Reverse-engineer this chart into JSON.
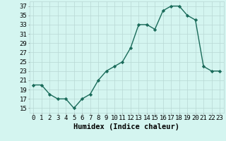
{
  "x": [
    0,
    1,
    2,
    3,
    4,
    5,
    6,
    7,
    8,
    9,
    10,
    11,
    12,
    13,
    14,
    15,
    16,
    17,
    18,
    19,
    20,
    21,
    22,
    23
  ],
  "y": [
    20,
    20,
    18,
    17,
    17,
    15,
    17,
    18,
    21,
    23,
    24,
    25,
    28,
    33,
    33,
    32,
    36,
    37,
    37,
    35,
    34,
    24,
    23,
    23
  ],
  "line_color": "#1a6b5a",
  "bg_color": "#d4f5f0",
  "grid_color": "#b8d8d4",
  "xlabel": "Humidex (Indice chaleur)",
  "xlim": [
    -0.5,
    23.5
  ],
  "ylim": [
    14,
    38
  ],
  "yticks": [
    15,
    17,
    19,
    21,
    23,
    25,
    27,
    29,
    31,
    33,
    35,
    37
  ],
  "xticks": [
    0,
    1,
    2,
    3,
    4,
    5,
    6,
    7,
    8,
    9,
    10,
    11,
    12,
    13,
    14,
    15,
    16,
    17,
    18,
    19,
    20,
    21,
    22,
    23
  ],
  "marker": "D",
  "marker_size": 2.2,
  "line_width": 1.0,
  "xlabel_fontsize": 7.5,
  "tick_fontsize": 6.5
}
